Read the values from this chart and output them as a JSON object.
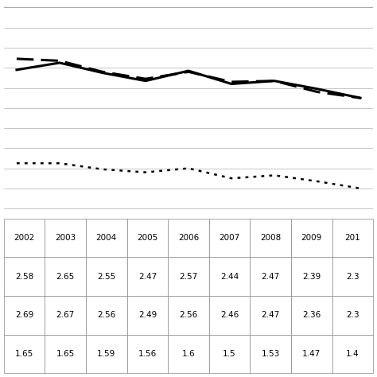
{
  "male_values": [
    2.58,
    2.65,
    2.55,
    2.47,
    2.57,
    2.44,
    2.47,
    2.39,
    2.3
  ],
  "female_values": [
    2.69,
    2.67,
    2.56,
    2.49,
    2.56,
    2.46,
    2.47,
    2.36,
    2.3
  ],
  "ratio_values": [
    1.65,
    1.65,
    1.59,
    1.56,
    1.6,
    1.5,
    1.53,
    1.47,
    1.4
  ],
  "table_col_labels": [
    "2002",
    "2003",
    "2004",
    "2005",
    "2006",
    "2007",
    "2008",
    "2009",
    "201"
  ],
  "table_data": [
    [
      "2.58",
      "2.65",
      "2.55",
      "2.47",
      "2.57",
      "2.44",
      "2.47",
      "2.39",
      "2.3"
    ],
    [
      "2.69",
      "2.67",
      "2.56",
      "2.49",
      "2.56",
      "2.46",
      "2.47",
      "2.36",
      "2.3"
    ],
    [
      "1.65",
      "1.65",
      "1.59",
      "1.56",
      "1.6",
      "1.5",
      "1.53",
      "1.47",
      "1.4"
    ]
  ],
  "ylim": [
    1.1,
    3.2
  ],
  "grid_lines": [
    1.2,
    1.4,
    1.6,
    1.8,
    2.0,
    2.2,
    2.4,
    2.6,
    2.8,
    3.0
  ],
  "line1_color": "#000000",
  "line2_color": "#000000",
  "line3_color": "#000000",
  "background_color": "#ffffff",
  "grid_color": "#bbbbbb",
  "table_edge_color": "#888888"
}
